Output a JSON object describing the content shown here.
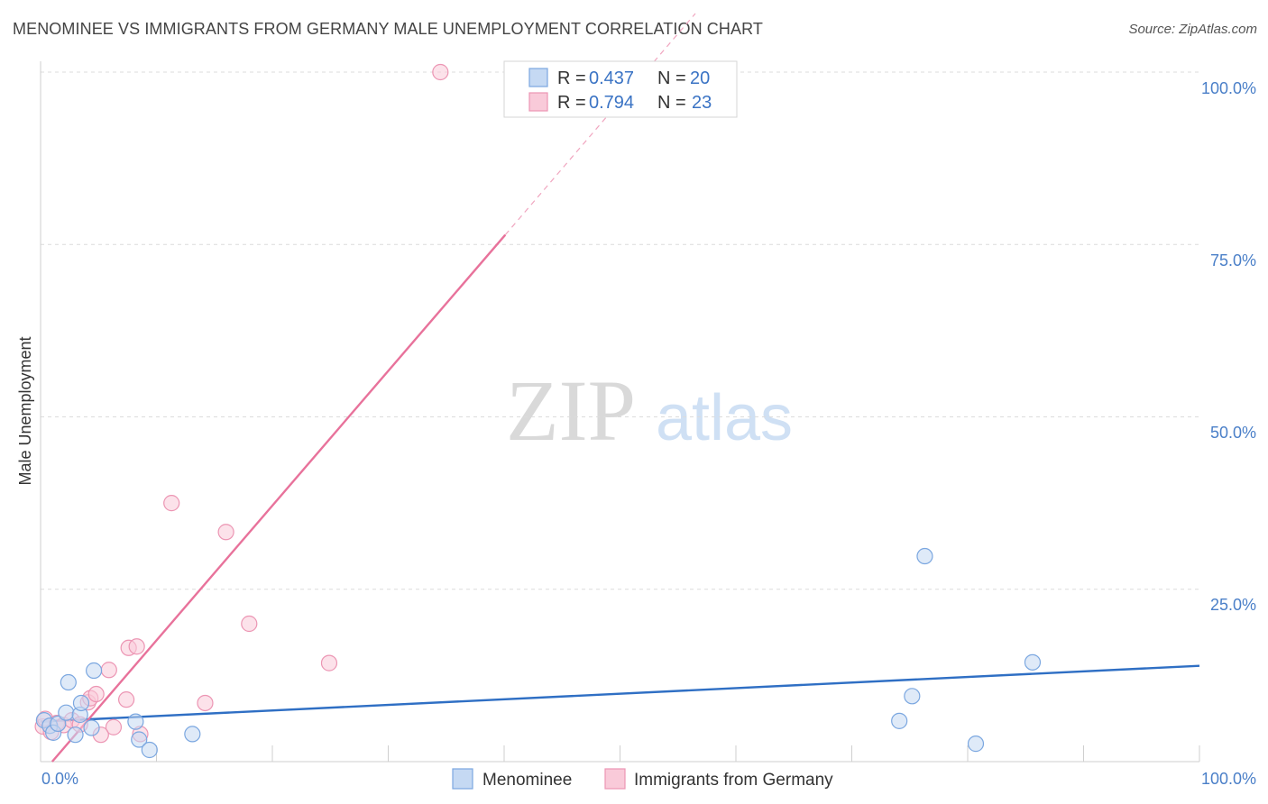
{
  "header": {
    "title": "MENOMINEE VS IMMIGRANTS FROM GERMANY MALE UNEMPLOYMENT CORRELATION CHART",
    "source": "Source: ZipAtlas.com"
  },
  "watermark": {
    "zip": "ZIP",
    "atlas": "atlas"
  },
  "legend": {
    "r_label": "R =",
    "n_label": "N =",
    "rows": [
      {
        "r": "0.437",
        "n": "20"
      },
      {
        "r": "0.794",
        "n": "23"
      }
    ]
  },
  "chart_data": {
    "type": "scatter",
    "title": "MENOMINEE VS IMMIGRANTS FROM GERMANY MALE UNEMPLOYMENT CORRELATION CHART",
    "xlabel": "",
    "ylabel": "Male Unemployment",
    "xlim": [
      0,
      100
    ],
    "ylim": [
      0,
      100
    ],
    "x_tick_labels": [
      "0.0%",
      "100.0%"
    ],
    "y_tick_labels": [
      "25.0%",
      "50.0%",
      "75.0%",
      "100.0%"
    ],
    "y_tick_values": [
      25,
      50,
      75,
      100
    ],
    "grid": true,
    "colors": {
      "menominee_fill": "#c5d9f3",
      "menominee_stroke": "#7ba7e0",
      "menominee_line": "#2f6fc4",
      "germany_fill": "#f9cad9",
      "germany_stroke": "#ec95b3",
      "germany_line": "#e8729b"
    },
    "series": [
      {
        "name": "Menominee",
        "points": [
          [
            0.3,
            6.0
          ],
          [
            0.8,
            5.2
          ],
          [
            1.1,
            4.2
          ],
          [
            1.5,
            5.5
          ],
          [
            2.2,
            7.1
          ],
          [
            2.4,
            11.5
          ],
          [
            3.0,
            3.9
          ],
          [
            3.4,
            6.8
          ],
          [
            3.5,
            8.5
          ],
          [
            4.4,
            4.9
          ],
          [
            4.6,
            13.2
          ],
          [
            8.2,
            5.8
          ],
          [
            8.5,
            3.2
          ],
          [
            9.4,
            1.7
          ],
          [
            13.1,
            4.0
          ],
          [
            74.1,
            5.9
          ],
          [
            75.2,
            9.5
          ],
          [
            76.3,
            29.8
          ],
          [
            80.7,
            2.6
          ],
          [
            85.6,
            14.4
          ]
        ],
        "trend": {
          "x": [
            0,
            100
          ],
          "y": [
            5.8,
            13.9
          ]
        }
      },
      {
        "name": "Immigrants from Germany",
        "points": [
          [
            0.2,
            5.1
          ],
          [
            0.4,
            6.2
          ],
          [
            0.9,
            4.3
          ],
          [
            1.4,
            5.6
          ],
          [
            2.0,
            5.3
          ],
          [
            2.7,
            6.0
          ],
          [
            3.4,
            5.4
          ],
          [
            4.1,
            8.6
          ],
          [
            4.3,
            9.2
          ],
          [
            4.8,
            9.8
          ],
          [
            5.9,
            13.3
          ],
          [
            6.3,
            5.0
          ],
          [
            7.4,
            9.0
          ],
          [
            7.6,
            16.5
          ],
          [
            8.3,
            16.7
          ],
          [
            8.6,
            4.0
          ],
          [
            11.3,
            37.5
          ],
          [
            14.2,
            8.5
          ],
          [
            16.0,
            33.3
          ],
          [
            18.0,
            20.0
          ],
          [
            24.9,
            14.3
          ],
          [
            34.5,
            100.0
          ],
          [
            5.2,
            3.9
          ]
        ],
        "trend": {
          "x": [
            1.0,
            40.1
          ],
          "y": [
            0,
            76.4
          ]
        },
        "trend_extension": {
          "x": [
            40.1,
            56.5
          ],
          "y": [
            76.4,
            108.5
          ]
        }
      }
    ]
  },
  "bottom_legend": [
    "Menominee",
    "Immigrants from Germany"
  ]
}
